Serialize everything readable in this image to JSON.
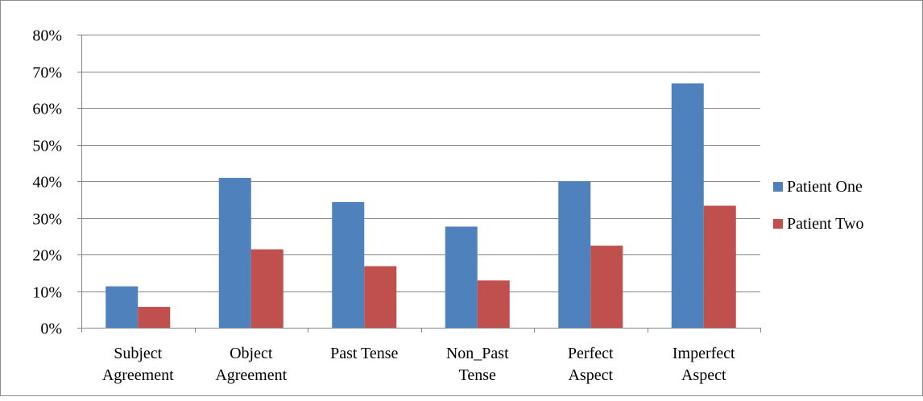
{
  "chart_data": {
    "type": "bar",
    "title": "",
    "xlabel": "",
    "ylabel": "",
    "categories": [
      [
        "Subject",
        "Agreement"
      ],
      [
        "Object",
        "Agreement"
      ],
      [
        "Past Tense"
      ],
      [
        "Non_Past",
        "Tense"
      ],
      [
        "Perfect",
        "Aspect"
      ],
      [
        "Imperfect",
        "Aspect"
      ]
    ],
    "series": [
      {
        "name": "Patient One",
        "color": "#4f81bd",
        "values": [
          0.113,
          0.409,
          0.343,
          0.276,
          0.4,
          0.667
        ]
      },
      {
        "name": "Patient Two",
        "color": "#c0504d",
        "values": [
          0.057,
          0.214,
          0.168,
          0.129,
          0.224,
          0.333
        ]
      }
    ],
    "ylim": [
      0,
      0.8
    ],
    "y_ticks": [
      0,
      0.1,
      0.2,
      0.3,
      0.4,
      0.5,
      0.6,
      0.7,
      0.8
    ],
    "y_tick_labels": [
      "0%",
      "10%",
      "20%",
      "30%",
      "40%",
      "50%",
      "60%",
      "70%",
      "80%"
    ],
    "grid": true,
    "legend_position": "right"
  }
}
